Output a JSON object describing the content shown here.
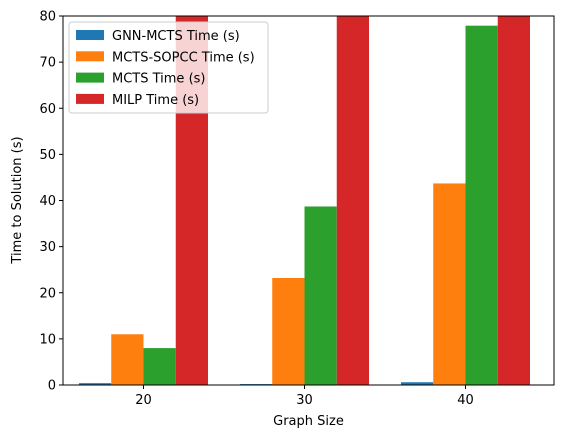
{
  "chart_data": {
    "type": "bar",
    "title": "",
    "xlabel": "Graph Size",
    "ylabel": "Time to Solution (s)",
    "categories": [
      "20",
      "30",
      "40"
    ],
    "ylim": [
      0,
      80
    ],
    "yticks": [
      0,
      10,
      20,
      30,
      40,
      50,
      60,
      70,
      80
    ],
    "grid": false,
    "legend_position": "top-left",
    "series": [
      {
        "name": "GNN-MCTS Time (s)",
        "color": "#1f77b4",
        "values": [
          0.4,
          0.2,
          0.6
        ]
      },
      {
        "name": "MCTS-SOPCC Time (s)",
        "color": "#ff7f0e",
        "values": [
          11.0,
          23.2,
          43.7
        ]
      },
      {
        "name": "MCTS Time (s)",
        "color": "#2ca02c",
        "values": [
          8.0,
          38.7,
          77.9
        ]
      },
      {
        "name": "MILP Time (s)",
        "color": "#d62728",
        "values": [
          81,
          81,
          81
        ]
      }
    ]
  }
}
